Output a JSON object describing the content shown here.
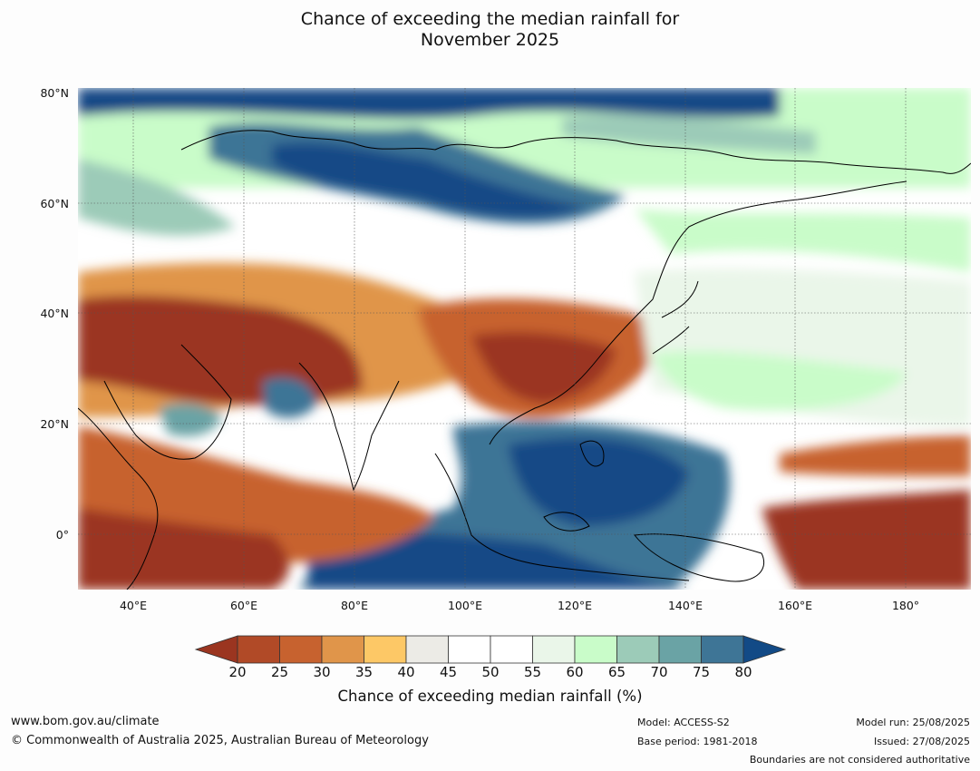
{
  "title_line1": "Chance of exceeding the median rainfall for",
  "title_line2": "November 2025",
  "lat_ticks": [
    "80°N",
    "60°N",
    "40°N",
    "20°N",
    "0°"
  ],
  "lon_ticks": [
    "40°E",
    "60°E",
    "80°E",
    "100°E",
    "120°E",
    "140°E",
    "160°E",
    "180°"
  ],
  "colorbar": {
    "levels": [
      "20",
      "25",
      "30",
      "35",
      "40",
      "45",
      "50",
      "55",
      "60",
      "65",
      "70",
      "75",
      "80"
    ],
    "colors": [
      "#9b3520",
      "#b14a27",
      "#c7622f",
      "#e0954a",
      "#fdc866",
      "#ecebe6",
      "#ffffff",
      "#ffffff",
      "#eaf6e9",
      "#c9fcc9",
      "#9ccbb8",
      "#6aa3a5",
      "#3e7596",
      "#124a86"
    ],
    "title": "Chance of exceeding median rainfall (%)"
  },
  "footer": {
    "url": "www.bom.gov.au/climate",
    "copyright": "© Commonwealth of Australia 2025, Australian Bureau of Meteorology",
    "model": "Model: ACCESS-S2",
    "base_period": "Base period: 1981-2018",
    "model_run": "Model run: 25/08/2025",
    "issued": "Issued: 27/08/2025",
    "disclaimer": "Boundaries are not considered authoritative"
  }
}
